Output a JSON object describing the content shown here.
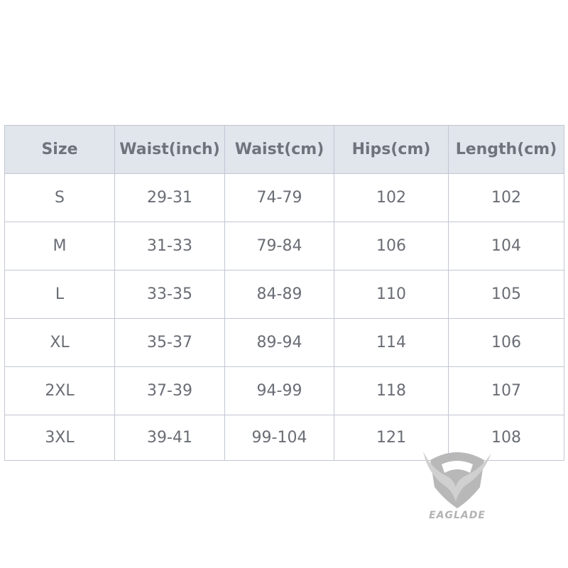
{
  "table": {
    "headers": [
      "Size",
      "Waist(inch)",
      "Waist(cm)",
      "Hips(cm)",
      "Length(cm)"
    ],
    "rows": [
      [
        "S",
        "29-31",
        "74-79",
        "102",
        "102"
      ],
      [
        "M",
        "31-33",
        "79-84",
        "106",
        "104"
      ],
      [
        "L",
        "33-35",
        "84-89",
        "110",
        "105"
      ],
      [
        "XL",
        "35-37",
        "89-94",
        "114",
        "106"
      ],
      [
        "2XL",
        "37-39",
        "94-99",
        "118",
        "107"
      ],
      [
        "3XL",
        "39-41",
        "99-104",
        "121",
        "108"
      ]
    ]
  },
  "logo": {
    "text": "EAGLADE",
    "icon": "eagle-shield-icon",
    "color": "#b3b3b3"
  },
  "colors": {
    "header_bg": "#e1e5ec",
    "border": "#c3c6d3",
    "text": "#6a6d75"
  }
}
